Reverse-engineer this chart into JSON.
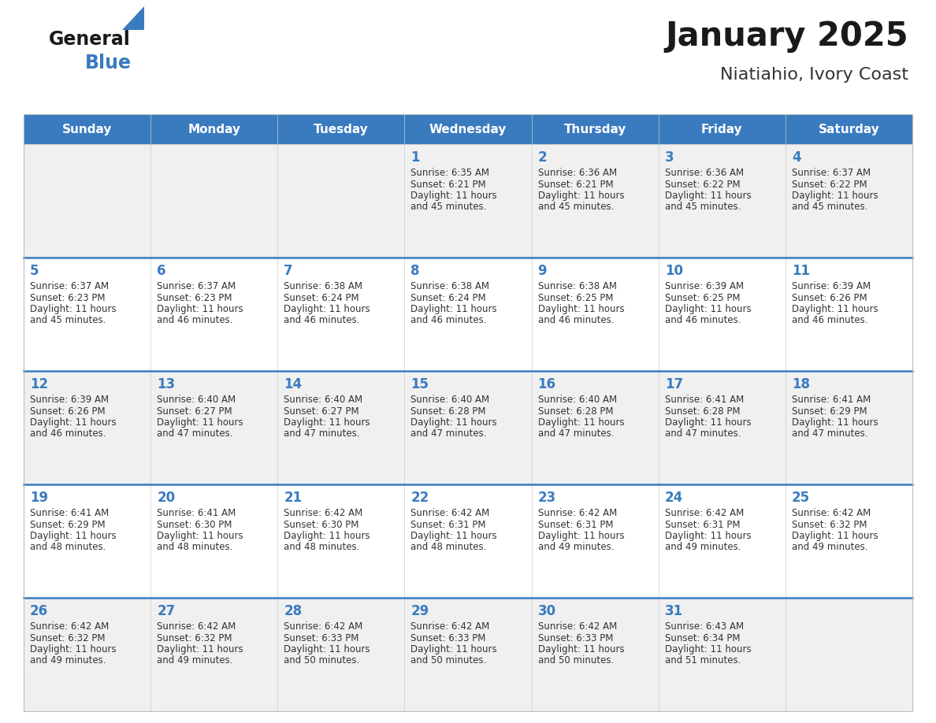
{
  "title": "January 2025",
  "subtitle": "Niatiahio, Ivory Coast",
  "days_of_week": [
    "Sunday",
    "Monday",
    "Tuesday",
    "Wednesday",
    "Thursday",
    "Friday",
    "Saturday"
  ],
  "header_bg_color": "#3a7bbf",
  "header_text_color": "#ffffff",
  "cell_bg_row0": "#f0f0f0",
  "cell_bg_row1": "#ffffff",
  "cell_bg_row2": "#f0f0f0",
  "cell_bg_row3": "#ffffff",
  "cell_bg_row4": "#f0f0f0",
  "divider_color": "#3a7bbf",
  "title_color": "#1a1a1a",
  "subtitle_color": "#333333",
  "day_num_color": "#3a7bbf",
  "cell_text_color": "#333333",
  "calendar": [
    [
      {
        "day": null,
        "sunrise": null,
        "sunset": null,
        "daylight": null
      },
      {
        "day": null,
        "sunrise": null,
        "sunset": null,
        "daylight": null
      },
      {
        "day": null,
        "sunrise": null,
        "sunset": null,
        "daylight": null
      },
      {
        "day": 1,
        "sunrise": "6:35 AM",
        "sunset": "6:21 PM",
        "daylight": "11 hours and 45 minutes."
      },
      {
        "day": 2,
        "sunrise": "6:36 AM",
        "sunset": "6:21 PM",
        "daylight": "11 hours and 45 minutes."
      },
      {
        "day": 3,
        "sunrise": "6:36 AM",
        "sunset": "6:22 PM",
        "daylight": "11 hours and 45 minutes."
      },
      {
        "day": 4,
        "sunrise": "6:37 AM",
        "sunset": "6:22 PM",
        "daylight": "11 hours and 45 minutes."
      }
    ],
    [
      {
        "day": 5,
        "sunrise": "6:37 AM",
        "sunset": "6:23 PM",
        "daylight": "11 hours and 45 minutes."
      },
      {
        "day": 6,
        "sunrise": "6:37 AM",
        "sunset": "6:23 PM",
        "daylight": "11 hours and 46 minutes."
      },
      {
        "day": 7,
        "sunrise": "6:38 AM",
        "sunset": "6:24 PM",
        "daylight": "11 hours and 46 minutes."
      },
      {
        "day": 8,
        "sunrise": "6:38 AM",
        "sunset": "6:24 PM",
        "daylight": "11 hours and 46 minutes."
      },
      {
        "day": 9,
        "sunrise": "6:38 AM",
        "sunset": "6:25 PM",
        "daylight": "11 hours and 46 minutes."
      },
      {
        "day": 10,
        "sunrise": "6:39 AM",
        "sunset": "6:25 PM",
        "daylight": "11 hours and 46 minutes."
      },
      {
        "day": 11,
        "sunrise": "6:39 AM",
        "sunset": "6:26 PM",
        "daylight": "11 hours and 46 minutes."
      }
    ],
    [
      {
        "day": 12,
        "sunrise": "6:39 AM",
        "sunset": "6:26 PM",
        "daylight": "11 hours and 46 minutes."
      },
      {
        "day": 13,
        "sunrise": "6:40 AM",
        "sunset": "6:27 PM",
        "daylight": "11 hours and 47 minutes."
      },
      {
        "day": 14,
        "sunrise": "6:40 AM",
        "sunset": "6:27 PM",
        "daylight": "11 hours and 47 minutes."
      },
      {
        "day": 15,
        "sunrise": "6:40 AM",
        "sunset": "6:28 PM",
        "daylight": "11 hours and 47 minutes."
      },
      {
        "day": 16,
        "sunrise": "6:40 AM",
        "sunset": "6:28 PM",
        "daylight": "11 hours and 47 minutes."
      },
      {
        "day": 17,
        "sunrise": "6:41 AM",
        "sunset": "6:28 PM",
        "daylight": "11 hours and 47 minutes."
      },
      {
        "day": 18,
        "sunrise": "6:41 AM",
        "sunset": "6:29 PM",
        "daylight": "11 hours and 47 minutes."
      }
    ],
    [
      {
        "day": 19,
        "sunrise": "6:41 AM",
        "sunset": "6:29 PM",
        "daylight": "11 hours and 48 minutes."
      },
      {
        "day": 20,
        "sunrise": "6:41 AM",
        "sunset": "6:30 PM",
        "daylight": "11 hours and 48 minutes."
      },
      {
        "day": 21,
        "sunrise": "6:42 AM",
        "sunset": "6:30 PM",
        "daylight": "11 hours and 48 minutes."
      },
      {
        "day": 22,
        "sunrise": "6:42 AM",
        "sunset": "6:31 PM",
        "daylight": "11 hours and 48 minutes."
      },
      {
        "day": 23,
        "sunrise": "6:42 AM",
        "sunset": "6:31 PM",
        "daylight": "11 hours and 49 minutes."
      },
      {
        "day": 24,
        "sunrise": "6:42 AM",
        "sunset": "6:31 PM",
        "daylight": "11 hours and 49 minutes."
      },
      {
        "day": 25,
        "sunrise": "6:42 AM",
        "sunset": "6:32 PM",
        "daylight": "11 hours and 49 minutes."
      }
    ],
    [
      {
        "day": 26,
        "sunrise": "6:42 AM",
        "sunset": "6:32 PM",
        "daylight": "11 hours and 49 minutes."
      },
      {
        "day": 27,
        "sunrise": "6:42 AM",
        "sunset": "6:32 PM",
        "daylight": "11 hours and 49 minutes."
      },
      {
        "day": 28,
        "sunrise": "6:42 AM",
        "sunset": "6:33 PM",
        "daylight": "11 hours and 50 minutes."
      },
      {
        "day": 29,
        "sunrise": "6:42 AM",
        "sunset": "6:33 PM",
        "daylight": "11 hours and 50 minutes."
      },
      {
        "day": 30,
        "sunrise": "6:42 AM",
        "sunset": "6:33 PM",
        "daylight": "11 hours and 50 minutes."
      },
      {
        "day": 31,
        "sunrise": "6:43 AM",
        "sunset": "6:34 PM",
        "daylight": "11 hours and 51 minutes."
      },
      {
        "day": null,
        "sunrise": null,
        "sunset": null,
        "daylight": null
      }
    ]
  ],
  "logo_general_color": "#1a1a1a",
  "logo_blue_color": "#3a7bbf",
  "logo_triangle_color": "#3a7bbf",
  "title_fontsize": 30,
  "subtitle_fontsize": 16,
  "header_fontsize": 11,
  "day_num_fontsize": 12,
  "cell_text_fontsize": 8.5
}
